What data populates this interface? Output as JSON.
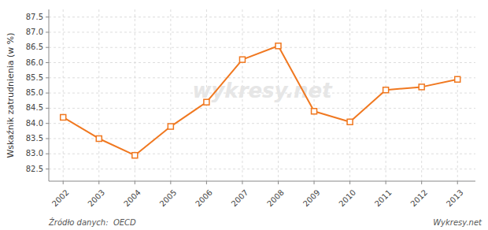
{
  "chart_data": {
    "type": "line",
    "x": [
      2002,
      2003,
      2004,
      2005,
      2006,
      2007,
      2008,
      2009,
      2010,
      2011,
      2012,
      2013
    ],
    "values": [
      84.2,
      83.5,
      82.95,
      83.9,
      84.7,
      86.1,
      86.55,
      84.4,
      84.05,
      85.1,
      85.2,
      85.45
    ],
    "color": "#f07820",
    "marker": "square",
    "y_label": "Wskaźnik zatrudnienia (w %)",
    "xlim": [
      2001.6,
      2013.5
    ],
    "xticks": [
      2002,
      2003,
      2004,
      2005,
      2006,
      2007,
      2008,
      2009,
      2010,
      2011,
      2012,
      2013
    ],
    "ylim": [
      82.1,
      87.75
    ],
    "yticks": [
      82.5,
      {
        "value": 83.0,
        "label": "83.0"
      },
      83.5,
      {
        "value": 84.0,
        "label": "84.0"
      },
      84.5,
      {
        "value": 85.0,
        "label": "85.0"
      },
      85.5,
      {
        "value": 86.0,
        "label": "86.0"
      },
      86.5,
      {
        "value": 87.0,
        "label": "87.0"
      },
      87.5
    ],
    "grid": true,
    "annotations": [
      "wykresy.net",
      "Źródło danych:  OECD",
      "Wykresy.net"
    ]
  }
}
